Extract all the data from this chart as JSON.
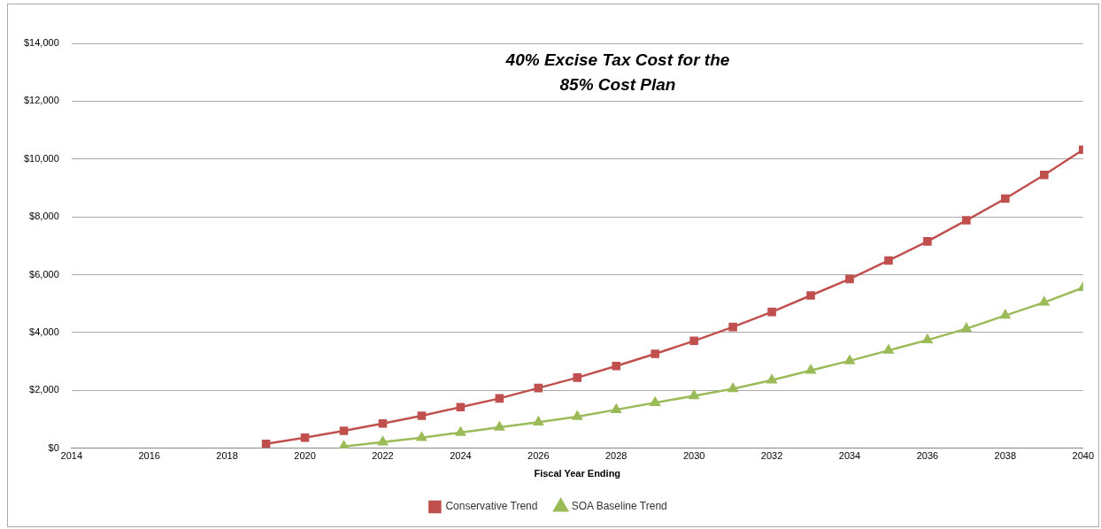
{
  "chart_data": {
    "type": "line",
    "title": "40% Excise Tax Cost for the\n85% Cost Plan",
    "xlabel": "Fiscal Year Ending",
    "x": [
      2019,
      2020,
      2021,
      2022,
      2023,
      2024,
      2025,
      2026,
      2027,
      2028,
      2029,
      2030,
      2031,
      2032,
      2033,
      2034,
      2035,
      2036,
      2037,
      2038,
      2039,
      2040
    ],
    "series": [
      {
        "name": "Conservative Trend",
        "color": "#c0504d",
        "marker": "square",
        "values": [
          150,
          360,
          600,
          850,
          1120,
          1420,
          1720,
          2080,
          2440,
          2840,
          3260,
          3710,
          4190,
          4710,
          5280,
          5850,
          6490,
          7150,
          7880,
          8630,
          9450,
          10320
        ]
      },
      {
        "name": "SOA Baseline Trend",
        "color": "#9bbb59",
        "marker": "triangle",
        "values": [
          null,
          null,
          60,
          210,
          360,
          540,
          720,
          900,
          1090,
          1330,
          1570,
          1810,
          2050,
          2350,
          2690,
          3020,
          3380,
          3740,
          4130,
          4590,
          5040,
          5550
        ]
      }
    ],
    "xlim": [
      2014,
      2040
    ],
    "xticks": [
      2014,
      2016,
      2018,
      2020,
      2022,
      2024,
      2026,
      2028,
      2030,
      2032,
      2034,
      2036,
      2038,
      2040
    ],
    "ylim": [
      0,
      14000
    ],
    "yticks": [
      {
        "value": 0,
        "label": "$0"
      },
      {
        "value": 2000,
        "label": "$2,000"
      },
      {
        "value": 4000,
        "label": "$4,000"
      },
      {
        "value": 6000,
        "label": "$6,000"
      },
      {
        "value": 8000,
        "label": "$8,000"
      },
      {
        "value": 10000,
        "label": "$10,000"
      },
      {
        "value": 12000,
        "label": "$12,000"
      },
      {
        "value": 14000,
        "label": "$14,000"
      }
    ],
    "grid": "y",
    "legend": "bottom",
    "line_style": "solid"
  }
}
